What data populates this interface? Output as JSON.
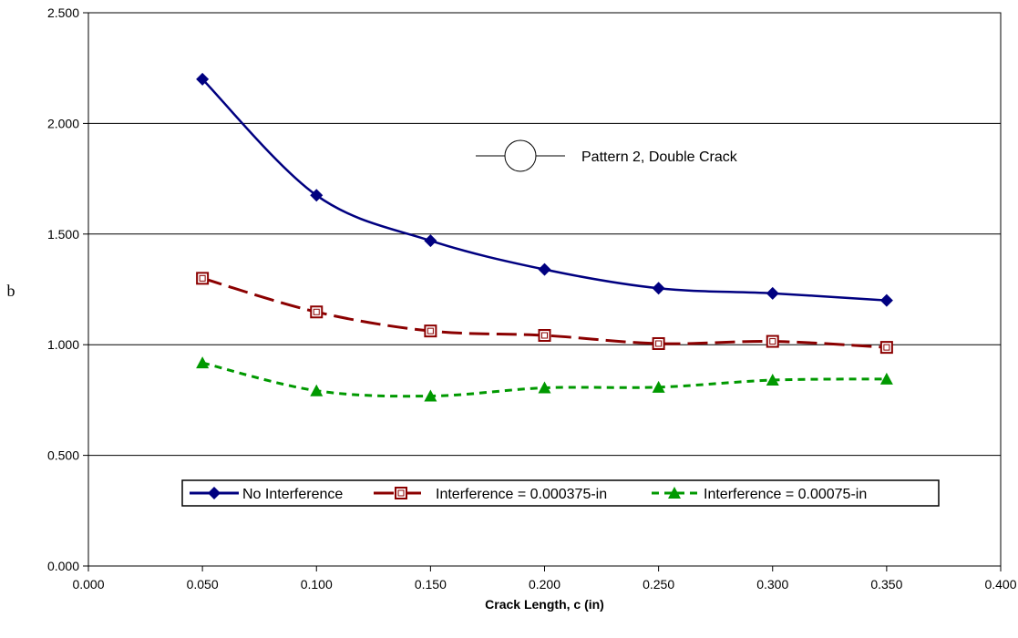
{
  "chart_data": {
    "type": "line",
    "title": "",
    "xlabel": "Crack Length, c (in)",
    "ylabel": "b",
    "xlim": [
      0.0,
      0.4
    ],
    "ylim": [
      0.0,
      2.5
    ],
    "x_ticks": [
      "0.000",
      "0.050",
      "0.100",
      "0.150",
      "0.200",
      "0.250",
      "0.300",
      "0.350",
      "0.400"
    ],
    "y_ticks": [
      "0.000",
      "0.500",
      "1.000",
      "1.500",
      "2.000",
      "2.500"
    ],
    "grid": "horizontal",
    "annotation": "Pattern 2, Double Crack",
    "legend_position": "inside-bottom",
    "series": [
      {
        "name": "No Interference",
        "color": "#000080",
        "marker": "diamond",
        "dash": "solid",
        "x": [
          0.05,
          0.1,
          0.15,
          0.2,
          0.25,
          0.3,
          0.35
        ],
        "y": [
          2.2,
          1.675,
          1.47,
          1.34,
          1.255,
          1.232,
          1.2
        ]
      },
      {
        "name": "Interference = 0.000375-in",
        "color": "#8b0000",
        "marker": "square",
        "dash": "long-dash",
        "x": [
          0.05,
          0.1,
          0.15,
          0.2,
          0.25,
          0.3,
          0.35
        ],
        "y": [
          1.3,
          1.148,
          1.062,
          1.042,
          1.005,
          1.015,
          0.988
        ]
      },
      {
        "name": "Interference = 0.00075-in",
        "color": "#009900",
        "marker": "triangle",
        "dash": "short-dash",
        "x": [
          0.05,
          0.1,
          0.15,
          0.2,
          0.25,
          0.3,
          0.35
        ],
        "y": [
          0.918,
          0.792,
          0.768,
          0.805,
          0.808,
          0.84,
          0.845
        ]
      }
    ]
  }
}
